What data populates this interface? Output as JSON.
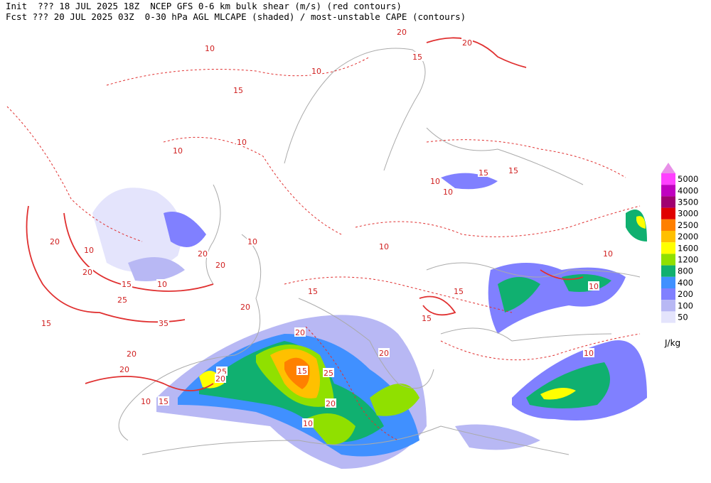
{
  "header": {
    "line1": "Init  ??? 18 JUL 2025 18Z  NCEP GFS 0-6 km bulk shear (m/s) (red contours)",
    "line2": "Fcst ??? 20 JUL 2025 03Z  0-30 hPa AGL MLCAPE (shaded) / most-unstable CAPE (contours)"
  },
  "legend": {
    "levels": [
      {
        "label": "5000",
        "color": "#ff40ff"
      },
      {
        "label": "4000",
        "color": "#c000c0"
      },
      {
        "label": "3500",
        "color": "#a00070"
      },
      {
        "label": "3000",
        "color": "#e00000"
      },
      {
        "label": "2500",
        "color": "#ff8000"
      },
      {
        "label": "2000",
        "color": "#ffc000"
      },
      {
        "label": "1600",
        "color": "#ffff00"
      },
      {
        "label": "1200",
        "color": "#90e000"
      },
      {
        "label": "800",
        "color": "#10b070"
      },
      {
        "label": "400",
        "color": "#4090ff"
      },
      {
        "label": "200",
        "color": "#8080ff"
      },
      {
        "label": "100",
        "color": "#b8b8f4"
      },
      {
        "label": "50",
        "color": "#e4e4fc"
      }
    ],
    "units": "J/kg"
  },
  "contour_labels": [
    "10",
    "10",
    "15",
    "15",
    "20",
    "20",
    "10",
    "10",
    "20",
    "10",
    "20",
    "15",
    "10",
    "25",
    "35",
    "15",
    "20",
    "20",
    "25",
    "20",
    "20",
    "15",
    "25",
    "20",
    "20",
    "10",
    "15",
    "10",
    "15",
    "15",
    "10",
    "10",
    "10",
    "10",
    "10",
    "10",
    "15",
    "15",
    "15",
    "10",
    "20",
    "20",
    "20"
  ]
}
